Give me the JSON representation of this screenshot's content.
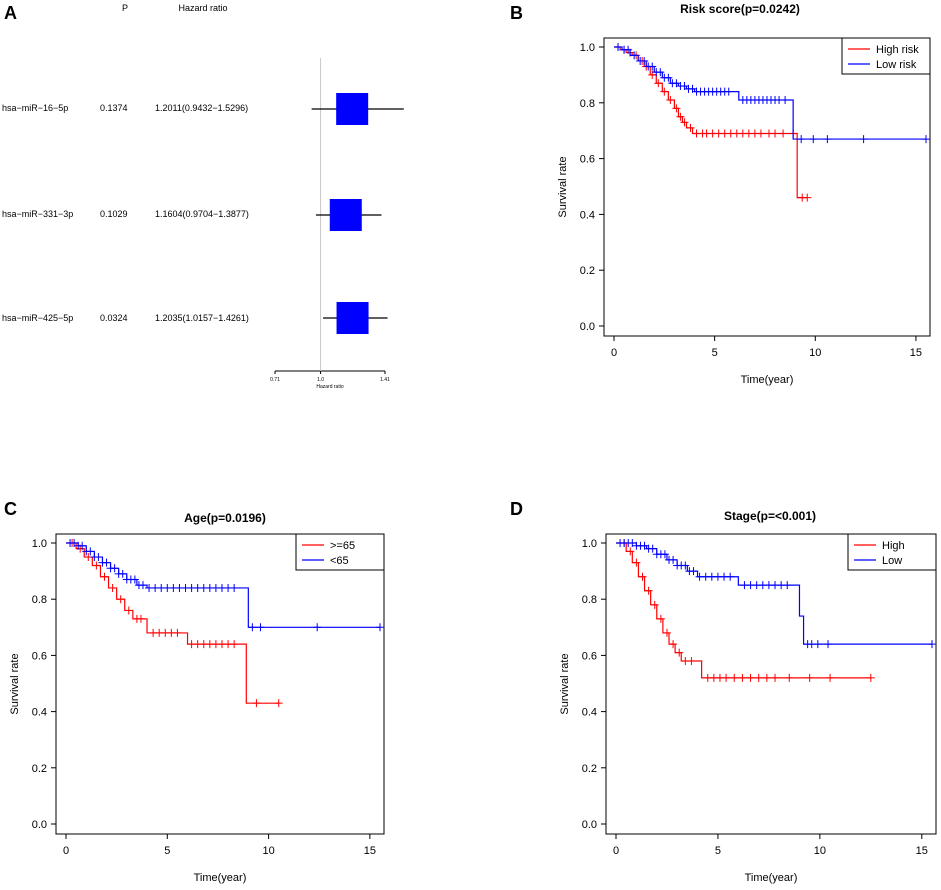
{
  "panels": {
    "A": {
      "letter": "A"
    },
    "B": {
      "letter": "B"
    },
    "C": {
      "letter": "C"
    },
    "D": {
      "letter": "D"
    }
  },
  "colors": {
    "red": "#ff0000",
    "blue": "#0000ff",
    "box": "#0000ff",
    "axis": "#000000"
  },
  "chart_data": [
    {
      "id": "A",
      "type": "forest",
      "col_p_header": "P",
      "col_hr_header": "Hazard ratio",
      "xlabel": "Hazard ratio",
      "xlim": [
        0.71,
        1.41
      ],
      "ref_line": 1.0,
      "ticks": [
        {
          "value": 0.71,
          "label": "0.71"
        },
        {
          "value": 1.0,
          "label": "1.0"
        },
        {
          "value": 1.41,
          "label": "1.41"
        }
      ],
      "rows": [
        {
          "name": "hsa−miR−16−5p",
          "p": "0.1374",
          "hr_text": "1.2011(0.9432−1.5296)",
          "hr": 1.2011,
          "lo": 0.9432,
          "hi": 1.5296
        },
        {
          "name": "hsa−miR−331−3p",
          "p": "0.1029",
          "hr_text": "1.1604(0.9704−1.3877)",
          "hr": 1.1604,
          "lo": 0.9704,
          "hi": 1.3877
        },
        {
          "name": "hsa−miR−425−5p",
          "p": "0.0324",
          "hr_text": "1.2035(1.0157−1.4261)",
          "hr": 1.2035,
          "lo": 1.0157,
          "hi": 1.4261
        }
      ]
    },
    {
      "id": "B",
      "type": "line",
      "title": "Risk score(p=0.0242)",
      "xlabel": "Time(year)",
      "ylabel": "Survival rate",
      "xlim": [
        0,
        15.5
      ],
      "ylim": [
        0,
        1
      ],
      "xticks": [
        0,
        5,
        10,
        15
      ],
      "yticks": [
        0.0,
        0.2,
        0.4,
        0.6,
        0.8,
        1.0
      ],
      "series": [
        {
          "name": "High risk",
          "color": "#ff0000",
          "steps": [
            [
              0,
              1
            ],
            [
              0.3,
              0.99
            ],
            [
              0.6,
              0.98
            ],
            [
              0.9,
              0.97
            ],
            [
              1.2,
              0.95
            ],
            [
              1.5,
              0.93
            ],
            [
              1.8,
              0.9
            ],
            [
              2.1,
              0.87
            ],
            [
              2.4,
              0.84
            ],
            [
              2.7,
              0.81
            ],
            [
              3.0,
              0.78
            ],
            [
              3.2,
              0.75
            ],
            [
              3.4,
              0.73
            ],
            [
              3.6,
              0.71
            ],
            [
              3.9,
              0.69
            ],
            [
              9.1,
              0.46
            ],
            [
              9.6,
              0.46
            ]
          ],
          "censor": [
            0.2,
            0.5,
            0.8,
            1.1,
            1.4,
            1.6,
            1.9,
            2.2,
            2.5,
            2.8,
            3.1,
            3.3,
            3.5,
            3.8,
            4.1,
            4.4,
            4.6,
            4.9,
            5.2,
            5.5,
            5.8,
            6.1,
            6.4,
            6.7,
            7.0,
            7.3,
            7.7,
            8.0,
            8.4,
            8.9,
            9.35,
            9.6
          ]
        },
        {
          "name": "Low risk",
          "color": "#0000ff",
          "steps": [
            [
              0,
              1
            ],
            [
              0.4,
              0.99
            ],
            [
              0.8,
              0.97
            ],
            [
              1.2,
              0.95
            ],
            [
              1.6,
              0.93
            ],
            [
              2.0,
              0.91
            ],
            [
              2.4,
              0.89
            ],
            [
              2.8,
              0.87
            ],
            [
              3.2,
              0.86
            ],
            [
              3.6,
              0.85
            ],
            [
              4.0,
              0.84
            ],
            [
              6.2,
              0.81
            ],
            [
              8.9,
              0.67
            ],
            [
              15.5,
              0.67
            ]
          ],
          "censor": [
            0.2,
            0.5,
            0.7,
            1.0,
            1.3,
            1.5,
            1.7,
            1.9,
            2.1,
            2.3,
            2.5,
            2.7,
            2.9,
            3.1,
            3.3,
            3.5,
            3.7,
            3.9,
            4.1,
            4.3,
            4.5,
            4.7,
            4.9,
            5.1,
            5.3,
            5.5,
            5.7,
            6.4,
            6.6,
            6.8,
            7.0,
            7.2,
            7.4,
            7.6,
            7.8,
            8.0,
            8.2,
            8.5,
            9.3,
            9.9,
            10.6,
            12.4,
            15.5
          ]
        }
      ]
    },
    {
      "id": "C",
      "type": "line",
      "title": "Age(p=0.0196)",
      "xlabel": "Time(year)",
      "ylabel": "Survival rate",
      "xlim": [
        0,
        15.5
      ],
      "ylim": [
        0,
        1
      ],
      "xticks": [
        0,
        5,
        10,
        15
      ],
      "yticks": [
        0.0,
        0.2,
        0.4,
        0.6,
        0.8,
        1.0
      ],
      "series": [
        {
          "name": ">=65",
          "color": "#ff0000",
          "steps": [
            [
              0,
              1
            ],
            [
              0.5,
              0.98
            ],
            [
              0.9,
              0.95
            ],
            [
              1.3,
              0.92
            ],
            [
              1.7,
              0.88
            ],
            [
              2.1,
              0.84
            ],
            [
              2.5,
              0.8
            ],
            [
              2.9,
              0.76
            ],
            [
              3.3,
              0.73
            ],
            [
              4.0,
              0.68
            ],
            [
              6.0,
              0.64
            ],
            [
              8.9,
              0.43
            ],
            [
              10.5,
              0.43
            ]
          ],
          "censor": [
            0.3,
            0.7,
            1.1,
            1.5,
            1.9,
            2.3,
            2.7,
            3.1,
            3.5,
            3.7,
            4.3,
            4.6,
            4.9,
            5.2,
            5.5,
            6.2,
            6.5,
            6.8,
            7.1,
            7.4,
            7.7,
            8.0,
            8.3,
            9.4,
            10.5
          ]
        },
        {
          "name": "<65",
          "color": "#0000ff",
          "steps": [
            [
              0,
              1
            ],
            [
              0.6,
              0.99
            ],
            [
              1.0,
              0.97
            ],
            [
              1.4,
              0.95
            ],
            [
              1.8,
              0.93
            ],
            [
              2.2,
              0.91
            ],
            [
              2.6,
              0.89
            ],
            [
              3.0,
              0.87
            ],
            [
              3.5,
              0.85
            ],
            [
              4.0,
              0.84
            ],
            [
              9.0,
              0.7
            ],
            [
              15.5,
              0.7
            ]
          ],
          "censor": [
            0.2,
            0.4,
            0.6,
            0.8,
            1.0,
            1.2,
            1.4,
            1.6,
            1.8,
            2.0,
            2.2,
            2.4,
            2.6,
            2.8,
            3.0,
            3.2,
            3.4,
            3.6,
            3.8,
            4.1,
            4.4,
            4.7,
            5.0,
            5.3,
            5.6,
            5.9,
            6.2,
            6.5,
            6.8,
            7.1,
            7.4,
            7.7,
            8.0,
            8.3,
            9.2,
            9.6,
            12.4,
            15.5
          ]
        }
      ]
    },
    {
      "id": "D",
      "type": "line",
      "title": "Stage(p=<0.001)",
      "xlabel": "Time(year)",
      "ylabel": "Survival rate",
      "xlim": [
        0,
        15.5
      ],
      "ylim": [
        0,
        1
      ],
      "xticks": [
        0,
        5,
        10,
        15
      ],
      "yticks": [
        0.0,
        0.2,
        0.4,
        0.6,
        0.8,
        1.0
      ],
      "series": [
        {
          "name": "High",
          "color": "#ff0000",
          "steps": [
            [
              0,
              1
            ],
            [
              0.5,
              0.97
            ],
            [
              0.8,
              0.93
            ],
            [
              1.1,
              0.88
            ],
            [
              1.4,
              0.83
            ],
            [
              1.7,
              0.78
            ],
            [
              2.0,
              0.73
            ],
            [
              2.3,
              0.68
            ],
            [
              2.6,
              0.64
            ],
            [
              2.9,
              0.61
            ],
            [
              3.2,
              0.58
            ],
            [
              4.2,
              0.52
            ],
            [
              12.5,
              0.52
            ]
          ],
          "censor": [
            0.4,
            0.7,
            1.0,
            1.3,
            1.6,
            1.9,
            2.2,
            2.5,
            2.8,
            3.1,
            3.4,
            3.7,
            4.5,
            4.8,
            5.1,
            5.4,
            5.8,
            6.2,
            6.6,
            7.0,
            7.4,
            7.8,
            8.5,
            9.5,
            10.5,
            12.5
          ]
        },
        {
          "name": "Low",
          "color": "#0000ff",
          "steps": [
            [
              0,
              1
            ],
            [
              1.0,
              0.99
            ],
            [
              1.5,
              0.98
            ],
            [
              2.0,
              0.96
            ],
            [
              2.5,
              0.94
            ],
            [
              3.0,
              0.92
            ],
            [
              3.5,
              0.9
            ],
            [
              4.0,
              0.88
            ],
            [
              6.0,
              0.85
            ],
            [
              9.0,
              0.74
            ],
            [
              9.2,
              0.64
            ],
            [
              15.5,
              0.64
            ]
          ],
          "censor": [
            0.2,
            0.4,
            0.6,
            0.8,
            1.0,
            1.2,
            1.4,
            1.6,
            1.8,
            2.0,
            2.2,
            2.4,
            2.6,
            2.8,
            3.0,
            3.2,
            3.4,
            3.6,
            3.8,
            4.1,
            4.4,
            4.7,
            5.0,
            5.3,
            5.6,
            6.3,
            6.6,
            6.9,
            7.2,
            7.5,
            7.8,
            8.1,
            8.4,
            9.4,
            9.6,
            9.9,
            10.4,
            15.5
          ]
        }
      ]
    }
  ]
}
